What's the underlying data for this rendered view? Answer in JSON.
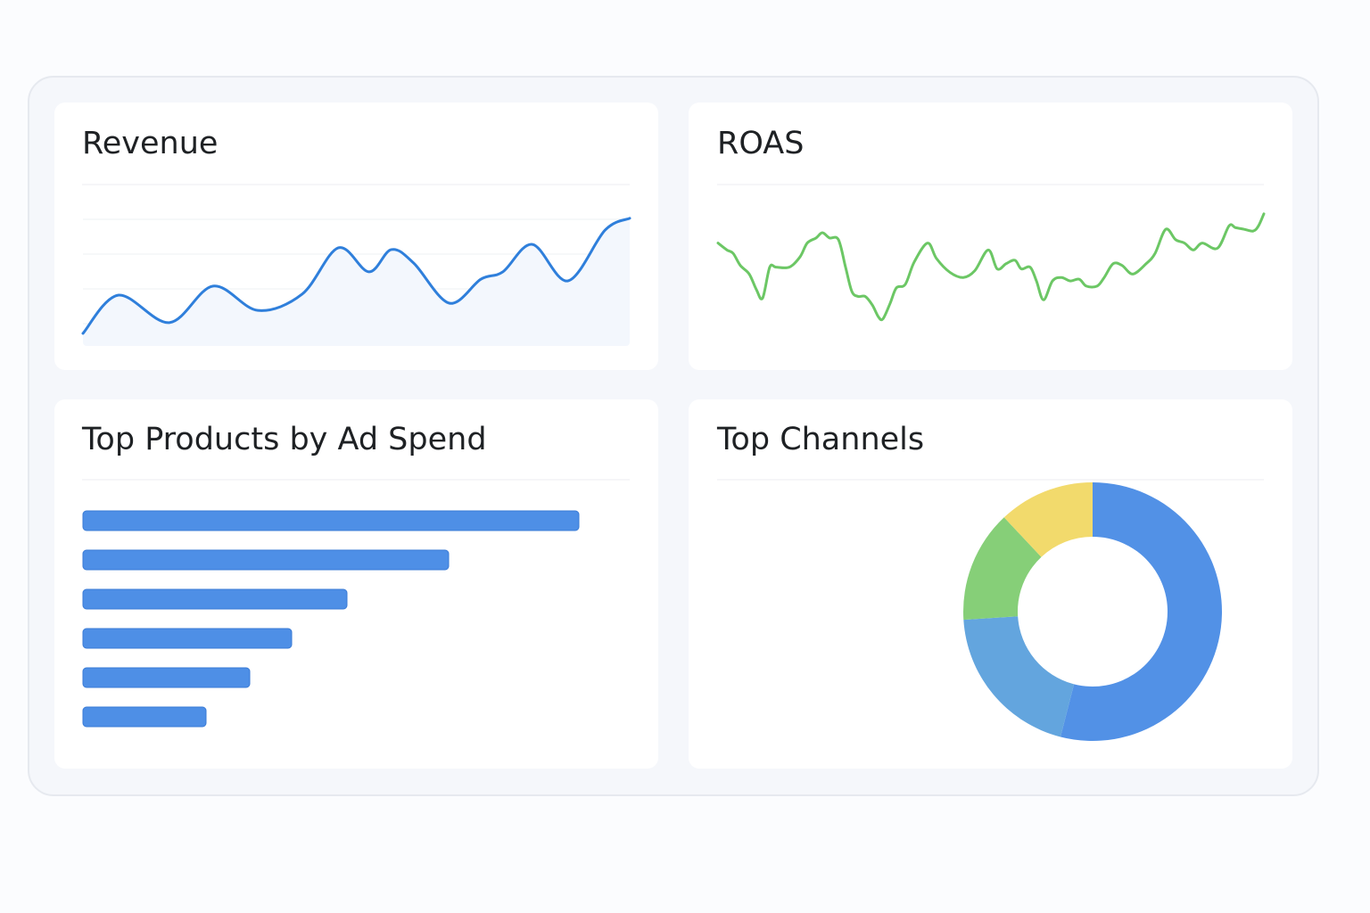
{
  "chart_data": [
    {
      "type": "area",
      "title": "Revenue",
      "color": "#2f7fdb",
      "fill": "#f3f7fd",
      "x": [
        0,
        6.5,
        15.8,
        23.8,
        32,
        40.1,
        46.7,
        52.3,
        56.4,
        60.5,
        67,
        72.8,
        76.8,
        82.2,
        88.7,
        95.5,
        100
      ],
      "values": [
        0.72,
        1.82,
        1.03,
        2.08,
        1.38,
        1.85,
        3.18,
        2.49,
        3.13,
        2.74,
        1.59,
        2.28,
        2.49,
        3.28,
        2.23,
        3.69,
        4.03
      ],
      "xlim": [
        0,
        100
      ],
      "ylim": [
        0,
        5
      ],
      "yticks": [
        1,
        2,
        3,
        4
      ],
      "grid": true
    },
    {
      "type": "line",
      "title": "ROAS",
      "color": "#6cc765",
      "x": [
        0,
        10,
        17,
        25,
        35,
        43,
        50,
        58,
        65,
        80,
        92,
        100,
        110,
        117,
        125,
        135,
        143,
        150,
        157,
        165,
        173,
        180,
        185,
        193,
        200,
        210,
        220,
        235,
        245,
        260,
        275,
        288,
        303,
        313,
        323,
        333,
        340,
        350,
        357,
        365,
        375,
        385,
        395,
        405,
        413,
        425,
        433,
        443,
        453,
        465,
        480,
        490,
        502,
        513,
        523,
        533,
        543,
        560,
        573,
        580,
        590,
        600,
        606,
        612
      ],
      "values": [
        6.6,
        6.2,
        6.0,
        5.3,
        4.8,
        3.9,
        3.4,
        5.2,
        5.2,
        5.2,
        5.8,
        6.6,
        6.9,
        7.2,
        6.9,
        6.8,
        5.2,
        3.8,
        3.5,
        3.5,
        3.0,
        2.3,
        2.2,
        3.1,
        4.0,
        4.2,
        5.5,
        6.6,
        5.7,
        4.9,
        4.6,
        5.0,
        6.2,
        5.1,
        5.4,
        5.6,
        5.1,
        5.2,
        4.4,
        3.3,
        4.4,
        4.6,
        4.4,
        4.5,
        4.1,
        4.1,
        4.6,
        5.4,
        5.3,
        4.8,
        5.4,
        6.0,
        7.4,
        6.8,
        6.6,
        6.2,
        6.6,
        6.3,
        7.6,
        7.5,
        7.4,
        7.3,
        7.6,
        8.3
      ],
      "xlim": [
        0,
        612
      ],
      "ylim": [
        0,
        10
      ],
      "grid": false
    },
    {
      "type": "bar",
      "orientation": "horizontal",
      "title": "Top Products by Ad Spend",
      "color": "#4e8fe6",
      "categories": [
        null,
        null,
        null,
        null,
        null,
        null
      ],
      "values": [
        556,
        410,
        296,
        234,
        187,
        138
      ],
      "xlim": [
        0,
        613
      ]
    },
    {
      "type": "donut",
      "title": "Top Channels",
      "values": [
        54,
        20,
        14,
        12
      ],
      "colors": [
        "#5291e6",
        "#63a5de",
        "#86cf78",
        "#f2da6c"
      ]
    }
  ]
}
